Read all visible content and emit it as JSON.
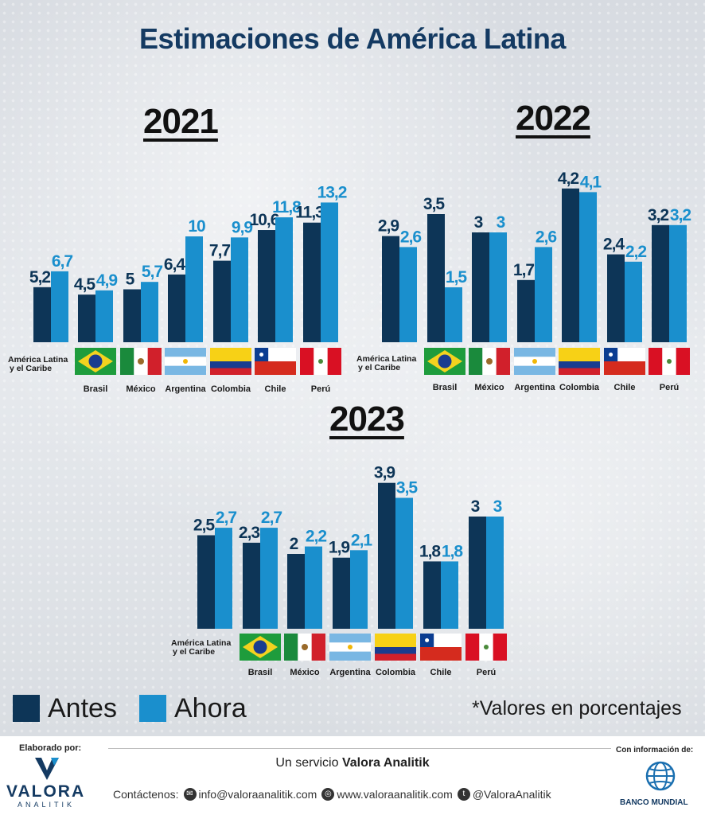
{
  "title": "Estimaciones de América Latina",
  "colors": {
    "antes": "#0d3557",
    "ahora": "#1a8fcd",
    "title": "#143a62"
  },
  "categories": [
    "América Latina y el Caribe",
    "Brasil",
    "México",
    "Argentina",
    "Colombia",
    "Chile",
    "Perú"
  ],
  "chart_data": [
    {
      "type": "bar",
      "title": "2021",
      "categories": [
        "América Latina y el Caribe",
        "Brasil",
        "México",
        "Argentina",
        "Colombia",
        "Chile",
        "Perú"
      ],
      "series": [
        {
          "name": "Antes",
          "values": [
            5.2,
            4.5,
            5,
            6.4,
            7.7,
            10.6,
            11.3
          ],
          "labels": [
            "5,2",
            "4,5",
            "5",
            "6,4",
            "7,7",
            "10,6",
            "11,3"
          ]
        },
        {
          "name": "Ahora",
          "values": [
            6.7,
            4.9,
            5.7,
            10,
            9.9,
            11.8,
            13.2
          ],
          "labels": [
            "6,7",
            "4,9",
            "5,7",
            "10",
            "9,9",
            "11,8",
            "13,2"
          ]
        }
      ]
    },
    {
      "type": "bar",
      "title": "2022",
      "categories": [
        "América Latina y el Caribe",
        "Brasil",
        "México",
        "Argentina",
        "Colombia",
        "Chile",
        "Perú"
      ],
      "series": [
        {
          "name": "Antes",
          "values": [
            2.9,
            3.5,
            3,
            1.7,
            4.2,
            2.4,
            3.2
          ],
          "labels": [
            "2,9",
            "3,5",
            "3",
            "1,7",
            "4,2",
            "2,4",
            "3,2"
          ]
        },
        {
          "name": "Ahora",
          "values": [
            2.6,
            1.5,
            3,
            2.6,
            4.1,
            2.2,
            3.2
          ],
          "labels": [
            "2,6",
            "1,5",
            "3",
            "2,6",
            "4,1",
            "2,2",
            "3,2"
          ]
        }
      ]
    },
    {
      "type": "bar",
      "title": "2023",
      "categories": [
        "América Latina y el Caribe",
        "Brasil",
        "México",
        "Argentina",
        "Colombia",
        "Chile",
        "Perú"
      ],
      "series": [
        {
          "name": "Antes",
          "values": [
            2.5,
            2.3,
            2,
            1.9,
            3.9,
            1.8,
            3
          ],
          "labels": [
            "2,5",
            "2,3",
            "2",
            "1,9",
            "3,9",
            "1,8",
            "3"
          ]
        },
        {
          "name": "Ahora",
          "values": [
            2.7,
            2.7,
            2.2,
            2.1,
            3.5,
            1.8,
            3
          ],
          "labels": [
            "2,7",
            "2,7",
            "2,2",
            "2,1",
            "3,5",
            "1,8",
            "3"
          ]
        }
      ]
    }
  ],
  "legend": {
    "antes": "Antes",
    "ahora": "Ahora"
  },
  "note": "*Valores en porcentajes",
  "footer": {
    "made_by": "Elaborado por:",
    "brand": "VALORA",
    "brand_sub": "ANALITIK",
    "service_prefix": "Un servicio",
    "service_name": "Valora Analitik",
    "contact_label": "Contáctenos:",
    "email": "info@valoraanalitik.com",
    "website": "www.valoraanalitik.com",
    "handle": "@ValoraAnalitik",
    "info_from": "Con información de:",
    "source": "BANCO MUNDIAL"
  }
}
